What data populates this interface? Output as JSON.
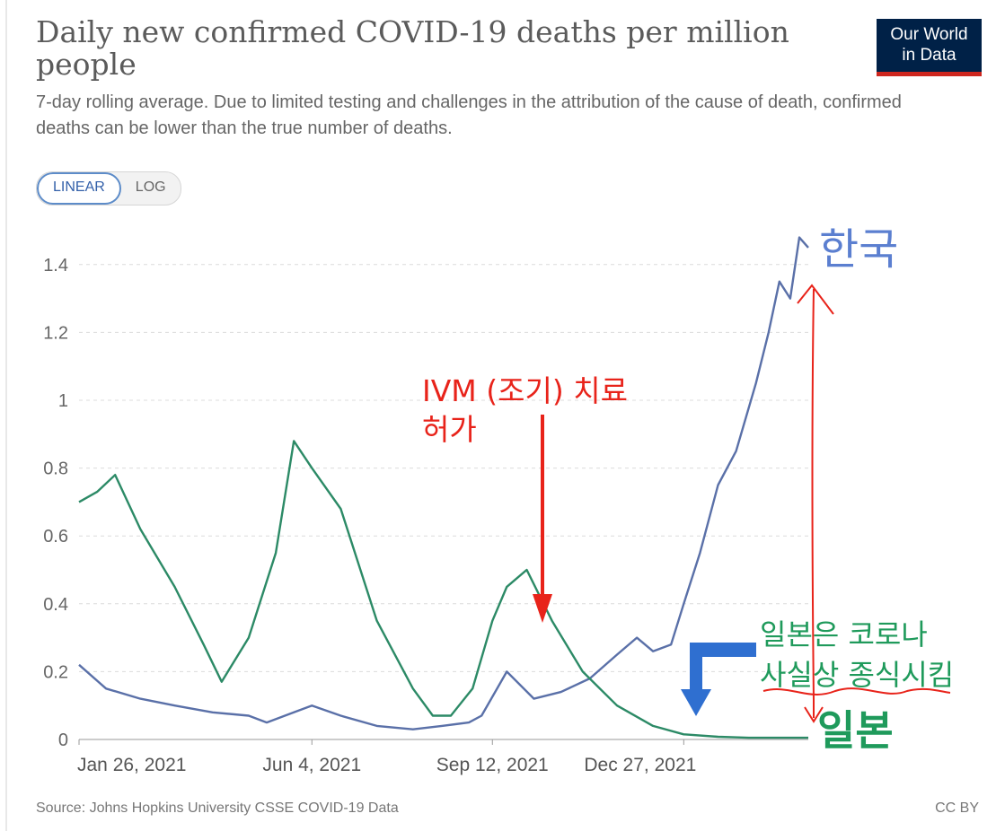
{
  "header": {
    "title": "Daily new confirmed COVID-19 deaths per million people",
    "subtitle": "7-day rolling average. Due to limited testing and challenges in the attribution of the cause of death, confirmed deaths can be lower than the true number of deaths.",
    "logo_line1": "Our World",
    "logo_line2": "in Data"
  },
  "toggle": {
    "linear_label": "LINEAR",
    "log_label": "LOG",
    "selected": "LINEAR"
  },
  "footer": {
    "source": "Source: Johns Hopkins University CSSE COVID-19 Data",
    "license": "CC BY"
  },
  "colors": {
    "korea": "#5a70a8",
    "japan": "#2c8a66",
    "annotation_red": "#e8231a",
    "annotation_green": "#1f9a5b",
    "annotation_blue": "#2f6fd0",
    "korea_label": "#5b7fd0"
  },
  "chart_data": {
    "type": "line",
    "title": "Daily new confirmed COVID-19 deaths per million people",
    "ylim": [
      0,
      1.5
    ],
    "yticks": [
      0,
      0.2,
      0.4,
      0.6,
      0.8,
      1,
      1.2,
      1.4
    ],
    "ytick_labels": [
      "0",
      "0.2",
      "0.4",
      "0.6",
      "0.8",
      "1",
      "1.2",
      "1.4"
    ],
    "xlim": [
      "2021-01-26",
      "2022-03-06"
    ],
    "xticks": [
      "2021-01-26",
      "2021-06-04",
      "2021-09-12",
      "2021-12-27"
    ],
    "xtick_labels": [
      "Jan 26, 2021",
      "Jun 4, 2021",
      "Sep 12, 2021",
      "Dec 27, 2021"
    ],
    "grid": "horizontal dashed",
    "series": [
      {
        "key": "korea",
        "x": [
          "2021-01-26",
          "2021-02-10",
          "2021-03-01",
          "2021-03-20",
          "2021-04-10",
          "2021-04-30",
          "2021-05-10",
          "2021-05-25",
          "2021-06-04",
          "2021-06-20",
          "2021-07-10",
          "2021-07-30",
          "2021-08-15",
          "2021-08-30",
          "2021-09-06",
          "2021-09-20",
          "2021-10-05",
          "2021-10-20",
          "2021-11-05",
          "2021-11-20",
          "2021-12-01",
          "2021-12-10",
          "2021-12-20",
          "2021-12-27",
          "2022-01-05",
          "2022-01-15",
          "2022-01-25",
          "2022-02-05",
          "2022-02-12",
          "2022-02-18",
          "2022-02-24",
          "2022-03-01",
          "2022-03-06"
        ],
        "y": [
          0.22,
          0.15,
          0.12,
          0.1,
          0.08,
          0.07,
          0.05,
          0.08,
          0.1,
          0.07,
          0.04,
          0.03,
          0.04,
          0.05,
          0.07,
          0.2,
          0.12,
          0.14,
          0.18,
          0.25,
          0.3,
          0.26,
          0.28,
          0.4,
          0.55,
          0.75,
          0.85,
          1.05,
          1.2,
          1.35,
          1.3,
          1.48,
          1.45
        ]
      },
      {
        "key": "japan",
        "x": [
          "2021-01-26",
          "2021-02-05",
          "2021-02-15",
          "2021-03-01",
          "2021-03-20",
          "2021-04-05",
          "2021-04-15",
          "2021-04-30",
          "2021-05-15",
          "2021-05-25",
          "2021-06-04",
          "2021-06-20",
          "2021-07-10",
          "2021-07-30",
          "2021-08-10",
          "2021-08-20",
          "2021-09-01",
          "2021-09-12",
          "2021-09-20",
          "2021-10-01",
          "2021-10-15",
          "2021-11-01",
          "2021-11-20",
          "2021-12-10",
          "2021-12-27",
          "2022-01-15",
          "2022-02-01",
          "2022-03-06"
        ],
        "y": [
          0.7,
          0.73,
          0.78,
          0.62,
          0.45,
          0.28,
          0.17,
          0.3,
          0.55,
          0.88,
          0.8,
          0.68,
          0.35,
          0.15,
          0.07,
          0.07,
          0.15,
          0.35,
          0.45,
          0.5,
          0.35,
          0.2,
          0.1,
          0.04,
          0.015,
          0.008,
          0.005,
          0.005
        ]
      }
    ],
    "annotations": {
      "ivm_line1": "IVM (조기) 치료",
      "ivm_line2": "허가",
      "korea_label": "한국",
      "japan_label": "일본",
      "japan_note_line1": "일본은 코로나",
      "japan_note_line2": "사실상 종식시킴"
    }
  }
}
